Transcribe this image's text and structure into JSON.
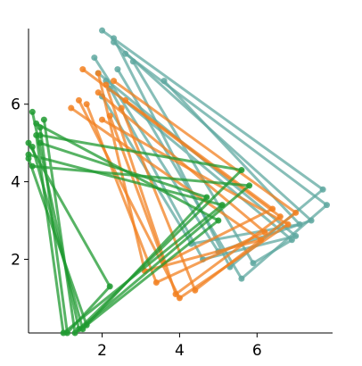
{
  "chart_data": {
    "type": "line",
    "xlim": [
      0.1,
      7.95
    ],
    "ylim": [
      0.1,
      7.95
    ],
    "xticks": [
      2,
      4,
      6
    ],
    "yticks": [
      2,
      4,
      6
    ],
    "series": [
      {
        "color": "#5fa8a0",
        "x": [
          2.0,
          7.7,
          5.3,
          2.3
        ],
        "values": [
          7.9,
          3.8,
          1.8,
          7.7
        ]
      },
      {
        "color": "#5fa8a0",
        "x": [
          2.3,
          7.4,
          5.0,
          1.8
        ],
        "values": [
          7.6,
          3.0,
          2.2,
          7.2
        ]
      },
      {
        "color": "#5fa8a0",
        "x": [
          1.9,
          7.0,
          4.6,
          2.1
        ],
        "values": [
          6.8,
          2.6,
          2.0,
          6.6
        ]
      },
      {
        "color": "#5fa8a0",
        "x": [
          2.6,
          7.8,
          5.6,
          2.4
        ],
        "values": [
          7.3,
          3.4,
          1.5,
          6.9
        ]
      },
      {
        "color": "#5fa8a0",
        "x": [
          3.6,
          7.1,
          4.3,
          2.0
        ],
        "values": [
          6.6,
          2.9,
          2.4,
          6.2
        ]
      },
      {
        "color": "#5fa8a0",
        "x": [
          2.2,
          6.9,
          5.9,
          2.8
        ],
        "values": [
          6.4,
          2.5,
          1.9,
          7.1
        ]
      },
      {
        "color": "#f28020",
        "x": [
          1.5,
          6.6,
          3.9,
          2.1
        ],
        "values": [
          6.9,
          3.1,
          1.1,
          6.5
        ]
      },
      {
        "color": "#f28020",
        "x": [
          1.9,
          6.2,
          3.4,
          1.6
        ],
        "values": [
          6.3,
          2.7,
          1.4,
          6.0
        ]
      },
      {
        "color": "#f28020",
        "x": [
          2.3,
          7.0,
          4.4,
          2.5
        ],
        "values": [
          6.6,
          3.2,
          1.2,
          5.9
        ]
      },
      {
        "color": "#f28020",
        "x": [
          1.2,
          6.1,
          3.1,
          1.9
        ],
        "values": [
          5.9,
          2.5,
          1.7,
          6.8
        ]
      },
      {
        "color": "#f28020",
        "x": [
          2.0,
          6.8,
          4.0,
          1.4
        ],
        "values": [
          5.6,
          2.9,
          1.0,
          6.1
        ]
      },
      {
        "color": "#f28020",
        "x": [
          2.6,
          6.4,
          3.6,
          2.2
        ],
        "values": [
          6.1,
          3.3,
          1.9,
          5.7
        ]
      },
      {
        "color": "#1f9a30",
        "x": [
          0.2,
          1.4,
          5.6,
          0.4
        ],
        "values": [
          5.8,
          0.2,
          4.3,
          5.2
        ]
      },
      {
        "color": "#1f9a30",
        "x": [
          0.3,
          1.0,
          5.1,
          0.1
        ],
        "values": [
          5.2,
          0.1,
          3.4,
          4.7
        ]
      },
      {
        "color": "#1f9a30",
        "x": [
          0.1,
          1.6,
          5.0,
          0.3
        ],
        "values": [
          4.6,
          0.3,
          3.0,
          5.5
        ]
      },
      {
        "color": "#1f9a30",
        "x": [
          0.5,
          1.3,
          5.8,
          0.2
        ],
        "values": [
          5.6,
          0.1,
          3.9,
          4.4
        ]
      },
      {
        "color": "#1f9a30",
        "x": [
          0.2,
          1.5,
          4.7,
          0.4
        ],
        "values": [
          4.9,
          0.2,
          3.6,
          5.0
        ]
      },
      {
        "color": "#1f9a30",
        "x": [
          0.4,
          1.1,
          2.2,
          0.1
        ],
        "values": [
          5.4,
          0.1,
          1.3,
          5.0
        ]
      }
    ]
  }
}
